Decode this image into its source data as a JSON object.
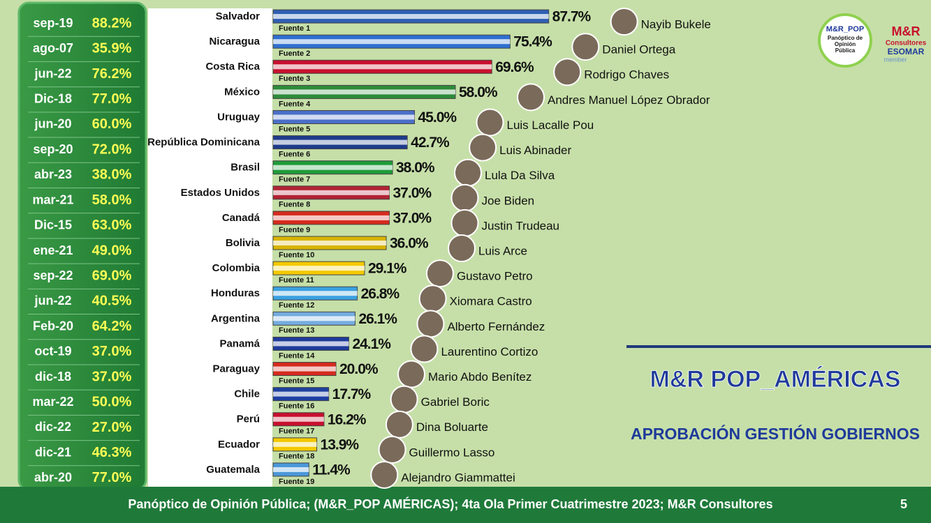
{
  "chart_data": {
    "type": "bar",
    "title": "M&R POP_AMÉRICAS",
    "subtitle": "APROBACIÓN GESTIÓN GOBIERNOS",
    "categories": [
      "Salvador",
      "Nicaragua",
      "Costa Rica",
      "México",
      "Uruguay",
      "República Dominicana",
      "Brasil",
      "Estados Unidos",
      "Canadá",
      "Bolivia",
      "Colombia",
      "Honduras",
      "Argentina",
      "Panamá",
      "Paraguay",
      "Chile",
      "Perú",
      "Ecuador",
      "Guatemala"
    ],
    "values": [
      87.7,
      75.4,
      69.6,
      58.0,
      45.0,
      42.7,
      38.0,
      37.0,
      37.0,
      36.0,
      29.1,
      26.8,
      26.1,
      24.1,
      20.0,
      17.7,
      16.2,
      13.9,
      11.4
    ],
    "value_labels": [
      "87.7%",
      "75.4%",
      "69.6%",
      "58.0%",
      "45.0%",
      "42.7%",
      "38.0%",
      "37.0%",
      "37.0%",
      "36.0%",
      "29.1%",
      "26.8%",
      "26.1%",
      "24.1%",
      "20.0%",
      "17.7%",
      "16.2%",
      "13.9%",
      "11.4%"
    ],
    "colors": [
      "#2f5fb3",
      "#2f6fd0",
      "#c8102e",
      "#2e8b3a",
      "#4a6fc8",
      "#1e3a8a",
      "#1f9b3a",
      "#b22234",
      "#d52b1e",
      "#d8b400",
      "#f4c900",
      "#3aa0e0",
      "#74acdf",
      "#1e3a9a",
      "#d52b1e",
      "#1e40a0",
      "#c8102e",
      "#f4c900",
      "#4a97d8"
    ],
    "sources": [
      "Fuente 1",
      "Fuente 2",
      "Fuente 3",
      "Fuente 4",
      "Fuente 5",
      "Fuente 6",
      "Fuente 7",
      "Fuente 8",
      "Fuente 9",
      "Fuente 10",
      "Fuente 11",
      "Fuente 12",
      "Fuente 13",
      "Fuente 14",
      "Fuente 15",
      "Fuente 16",
      "Fuente 17",
      "Fuente 18",
      "Fuente 19"
    ],
    "leaders": [
      "Nayib Bukele",
      "Daniel Ortega",
      "Rodrigo Chaves",
      "Andres Manuel López Obrador",
      "Luis Lacalle Pou",
      "Luis Abinader",
      "Lula Da Silva",
      "Joe Biden",
      "Justin Trudeau",
      "Luis Arce",
      "Gustavo Petro",
      "Xiomara Castro",
      "Alberto Fernández",
      "Laurentino Cortizo",
      "Mario Abdo Benítez",
      "Gabriel Boric",
      "Dina Boluarte",
      "Guillermo Lasso",
      "Alejandro Giammattei"
    ]
  },
  "history": {
    "rows": [
      [
        "sep-19",
        "88.2%"
      ],
      [
        "ago-07",
        "35.9%"
      ],
      [
        "jun-22",
        "76.2%"
      ],
      [
        "Dic-18",
        "77.0%"
      ],
      [
        "jun-20",
        "60.0%"
      ],
      [
        "sep-20",
        "72.0%"
      ],
      [
        "abr-23",
        "38.0%"
      ],
      [
        "mar-21",
        "58.0%"
      ],
      [
        "Dic-15",
        "63.0%"
      ],
      [
        "ene-21",
        "49.0%"
      ],
      [
        "sep-22",
        "69.0%"
      ],
      [
        "jun-22",
        "40.5%"
      ],
      [
        "Feb-20",
        "64.2%"
      ],
      [
        "oct-19",
        "37.0%"
      ],
      [
        "dic-18",
        "37.0%"
      ],
      [
        "mar-22",
        "50.0%"
      ],
      [
        "dic-22",
        "27.0%"
      ],
      [
        "dic-21",
        "46.3%"
      ],
      [
        "abr-20",
        "77.0%"
      ]
    ]
  },
  "logos": {
    "pop_name": "M&R_POP",
    "pop_sub": "Panóptico de Opinión Pública",
    "mr_name": "M&R",
    "mr_sub": "Consultores",
    "esomar": "ESOMAR",
    "member": "member"
  },
  "footer": {
    "text": "Panóptico de Opinión Pública; (M&R_POP AMÉRICAS); 4ta Ola Primer Cuatrimestre 2023; M&R Consultores",
    "page": "5"
  }
}
